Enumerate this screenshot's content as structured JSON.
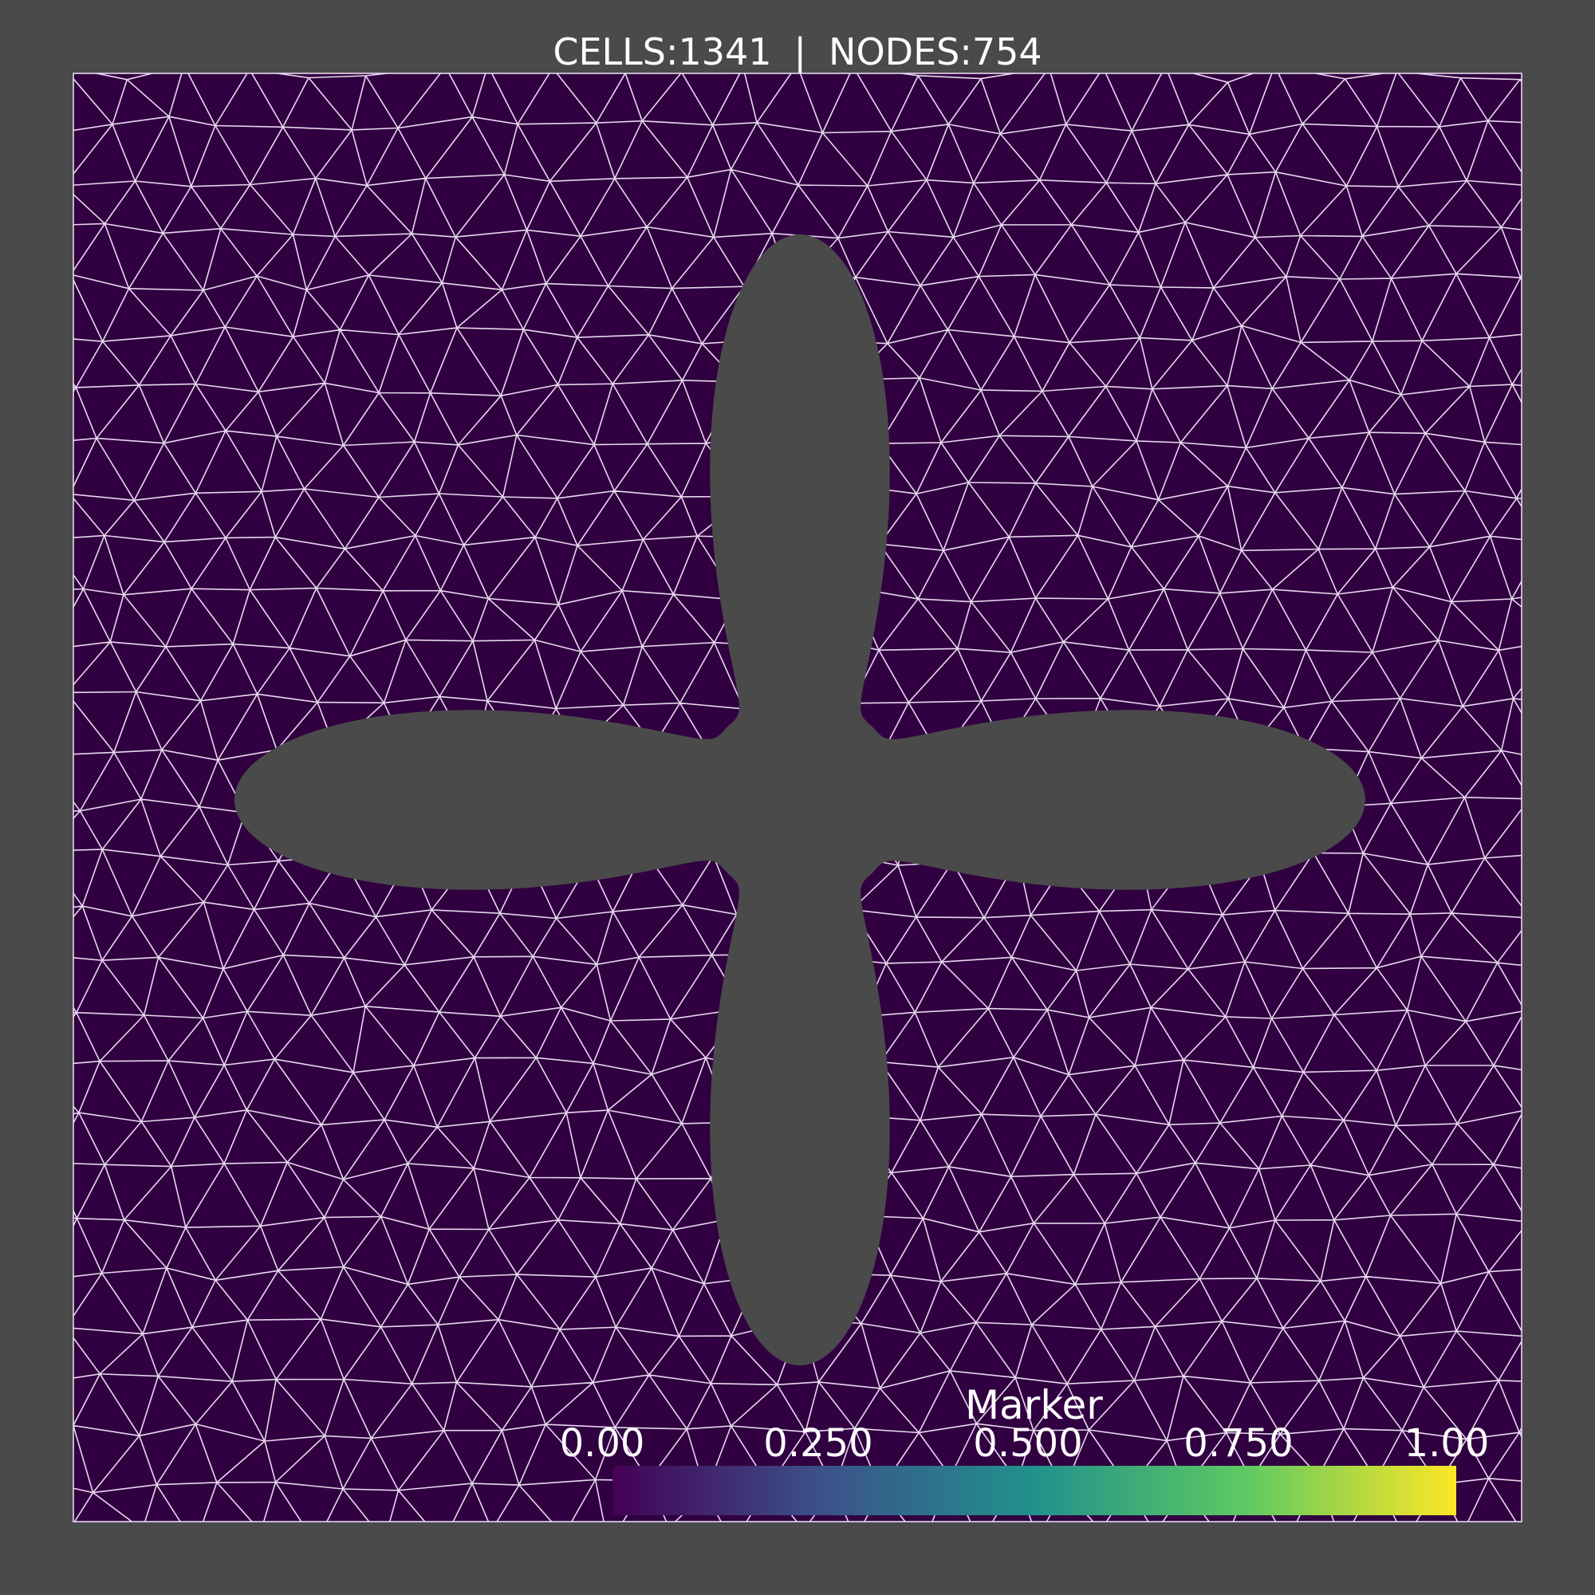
{
  "stats": {
    "cells_label": "CELLS:1341",
    "separator": "|",
    "nodes_label": "NODES:754"
  },
  "colorbar": {
    "title": "Marker",
    "ticks": [
      "0.00",
      "0.250",
      "0.500",
      "0.750",
      "1.00"
    ],
    "colormap": "viridis",
    "stops": [
      "#440154",
      "#3b528b",
      "#21918c",
      "#5ec962",
      "#fde725"
    ]
  },
  "mesh": {
    "fill_color": "#300040",
    "edge_color": "#e8d8f0",
    "background_color": "#4a4a4a"
  }
}
